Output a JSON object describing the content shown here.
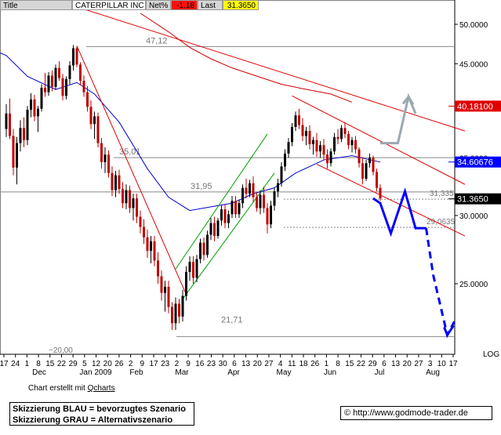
{
  "header": {
    "title_label": "Title",
    "company": "CATERPILLAR INC",
    "net_label": "Net%",
    "net_value": "-1.18",
    "last_label": "Last",
    "last_value": "31.3650"
  },
  "colors": {
    "price_up": "#000000",
    "price_down": "#c00000",
    "ma_short": "#0000cc",
    "ma_long": "#cc0000",
    "channel_red": "#e00000",
    "channel_green": "#00a000",
    "scenario_blue": "#0000ff",
    "scenario_grey": "#9aa9b0",
    "last_label_bg": "#000000",
    "tag_red": "#e00000",
    "tag_blue": "#0000ff"
  },
  "chart_data": {
    "type": "candlestick",
    "ylim": [
      20,
      53
    ],
    "y_scale": "log",
    "yticks": [
      "50.0000",
      "45.0000",
      "40.0000",
      "35.0000",
      "30.0000",
      "25.0000"
    ],
    "ytick_values": [
      50,
      45,
      40,
      35,
      30,
      25
    ],
    "y_axis_note": "LOG",
    "x_day_labels": [
      "17",
      "24",
      "1",
      "8",
      "15",
      "22",
      "29",
      "5",
      "12",
      "20",
      "26",
      "2",
      "9",
      "17",
      "23",
      "2",
      "9",
      "16",
      "23",
      "30",
      "6",
      "13",
      "20",
      "27",
      "4",
      "11",
      "18",
      "26",
      "1",
      "8",
      "15",
      "22",
      "29",
      "6",
      "13",
      "20",
      "27",
      "3",
      "10",
      "17"
    ],
    "x_month_labels": [
      "Dec",
      "Jan 2009",
      "Feb",
      "Mar",
      "Apr",
      "May",
      "Jun",
      "Jul",
      "Aug"
    ],
    "price_tags": [
      {
        "label": "40.18100",
        "value": 40.181,
        "style": "red"
      },
      {
        "label": "34.60676",
        "value": 34.60676,
        "style": "blue"
      },
      {
        "label": "31.3650",
        "value": 31.365,
        "style": "black"
      }
    ],
    "levels": [
      {
        "label": "47,12",
        "value": 47.12
      },
      {
        "label": "35,01",
        "value": 35.01
      },
      {
        "label": "31,95",
        "value": 31.95
      },
      {
        "label": "31,335",
        "value": 31.335
      },
      {
        "label": "29,0635",
        "value": 29.0635
      },
      {
        "label": "21,71",
        "value": 21.71
      },
      {
        "label": "~20,00",
        "value": 20.0
      }
    ],
    "candles": [
      [
        37.8,
        40.4,
        37.0,
        39.4
      ],
      [
        39.4,
        41.0,
        36.8,
        37.1
      ],
      [
        37.1,
        37.8,
        33.4,
        34.1
      ],
      [
        34.1,
        37.0,
        32.6,
        36.4
      ],
      [
        36.4,
        38.7,
        35.6,
        37.9
      ],
      [
        37.9,
        39.0,
        36.0,
        36.7
      ],
      [
        36.7,
        40.2,
        36.2,
        39.8
      ],
      [
        39.8,
        41.6,
        39.0,
        40.9
      ],
      [
        40.9,
        41.4,
        38.6,
        39.1
      ],
      [
        39.1,
        40.2,
        37.5,
        39.9
      ],
      [
        39.9,
        42.6,
        39.6,
        42.2
      ],
      [
        42.2,
        43.9,
        41.2,
        41.7
      ],
      [
        41.7,
        44.0,
        41.3,
        43.6
      ],
      [
        43.6,
        44.2,
        41.8,
        42.3
      ],
      [
        42.3,
        44.9,
        42.0,
        44.5
      ],
      [
        44.5,
        45.3,
        43.0,
        43.3
      ],
      [
        43.3,
        43.8,
        40.8,
        41.3
      ],
      [
        41.3,
        43.5,
        40.9,
        43.2
      ],
      [
        43.2,
        45.3,
        42.6,
        44.8
      ],
      [
        44.8,
        47.3,
        44.2,
        46.9
      ],
      [
        46.9,
        47.1,
        44.6,
        44.9
      ],
      [
        44.9,
        45.2,
        42.5,
        43.0
      ],
      [
        43.0,
        43.6,
        41.2,
        41.7
      ],
      [
        41.7,
        42.4,
        39.6,
        40.1
      ],
      [
        40.1,
        40.8,
        37.8,
        38.3
      ],
      [
        38.3,
        39.6,
        36.8,
        39.1
      ],
      [
        39.1,
        39.5,
        36.0,
        36.4
      ],
      [
        36.4,
        36.9,
        34.0,
        34.6
      ],
      [
        34.6,
        36.0,
        33.6,
        35.3
      ],
      [
        35.3,
        35.7,
        33.2,
        33.6
      ],
      [
        33.6,
        34.2,
        31.6,
        32.1
      ],
      [
        32.1,
        33.8,
        31.5,
        33.4
      ],
      [
        33.4,
        33.9,
        31.8,
        32.2
      ],
      [
        32.2,
        32.8,
        30.6,
        31.0
      ],
      [
        31.0,
        32.6,
        30.5,
        32.1
      ],
      [
        32.1,
        32.5,
        30.2,
        30.6
      ],
      [
        30.6,
        31.8,
        29.6,
        31.4
      ],
      [
        31.4,
        31.8,
        29.4,
        29.9
      ],
      [
        29.9,
        30.4,
        28.6,
        29.1
      ],
      [
        29.1,
        29.7,
        27.8,
        28.3
      ],
      [
        28.3,
        28.9,
        26.8,
        27.3
      ],
      [
        27.3,
        28.4,
        26.4,
        28.0
      ],
      [
        28.0,
        28.4,
        26.2,
        26.6
      ],
      [
        26.6,
        27.2,
        25.0,
        25.5
      ],
      [
        25.5,
        25.9,
        23.9,
        24.4
      ],
      [
        24.4,
        25.2,
        23.2,
        24.8
      ],
      [
        24.8,
        25.2,
        23.1,
        23.5
      ],
      [
        23.5,
        23.8,
        22.1,
        22.5
      ],
      [
        22.5,
        24.1,
        22.1,
        23.7
      ],
      [
        23.7,
        24.0,
        22.5,
        22.9
      ],
      [
        22.9,
        24.6,
        22.6,
        24.2
      ],
      [
        24.2,
        26.2,
        23.9,
        25.8
      ],
      [
        25.8,
        26.9,
        25.2,
        26.5
      ],
      [
        26.5,
        26.9,
        25.0,
        25.4
      ],
      [
        25.4,
        27.0,
        25.1,
        26.7
      ],
      [
        26.7,
        28.2,
        26.4,
        27.9
      ],
      [
        27.9,
        28.3,
        26.6,
        27.0
      ],
      [
        27.0,
        28.8,
        26.8,
        28.5
      ],
      [
        28.5,
        29.8,
        28.1,
        29.4
      ],
      [
        29.4,
        29.9,
        28.0,
        28.4
      ],
      [
        28.4,
        29.8,
        28.2,
        29.6
      ],
      [
        29.6,
        30.8,
        29.2,
        30.5
      ],
      [
        30.5,
        30.9,
        29.0,
        29.4
      ],
      [
        29.4,
        30.4,
        29.0,
        30.1
      ],
      [
        30.1,
        31.6,
        29.8,
        31.2
      ],
      [
        31.2,
        31.6,
        29.8,
        30.1
      ],
      [
        30.1,
        31.3,
        29.8,
        31.0
      ],
      [
        31.0,
        32.6,
        30.6,
        32.3
      ],
      [
        32.3,
        33.1,
        31.4,
        31.8
      ],
      [
        31.8,
        33.0,
        31.5,
        32.7
      ],
      [
        32.7,
        33.3,
        31.1,
        31.5
      ],
      [
        31.5,
        31.9,
        30.3,
        30.6
      ],
      [
        30.6,
        32.1,
        30.1,
        31.7
      ],
      [
        31.7,
        32.4,
        30.2,
        30.6
      ],
      [
        30.6,
        31.0,
        28.6,
        29.3
      ],
      [
        29.3,
        31.2,
        29.0,
        30.8
      ],
      [
        30.8,
        32.3,
        30.4,
        32.0
      ],
      [
        32.0,
        33.1,
        31.5,
        32.7
      ],
      [
        32.7,
        34.6,
        32.4,
        34.2
      ],
      [
        34.2,
        35.8,
        33.8,
        35.4
      ],
      [
        35.4,
        36.9,
        35.0,
        36.5
      ],
      [
        36.5,
        38.4,
        36.1,
        38.0
      ],
      [
        38.0,
        39.6,
        37.6,
        39.2
      ],
      [
        39.2,
        39.9,
        37.8,
        38.2
      ],
      [
        38.2,
        38.9,
        36.6,
        37.1
      ],
      [
        37.1,
        38.0,
        36.2,
        37.6
      ],
      [
        37.6,
        38.2,
        35.8,
        36.3
      ],
      [
        36.3,
        37.0,
        35.3,
        36.7
      ],
      [
        36.7,
        37.4,
        35.1,
        35.6
      ],
      [
        35.6,
        36.6,
        35.0,
        36.2
      ],
      [
        36.2,
        36.8,
        34.8,
        35.3
      ],
      [
        35.3,
        35.8,
        34.0,
        34.5
      ],
      [
        34.5,
        35.9,
        34.2,
        35.6
      ],
      [
        35.6,
        37.4,
        35.3,
        37.0
      ],
      [
        37.0,
        37.8,
        36.3,
        36.8
      ],
      [
        36.8,
        38.2,
        36.5,
        37.9
      ],
      [
        37.9,
        38.5,
        36.9,
        37.3
      ],
      [
        37.3,
        37.6,
        35.8,
        36.2
      ],
      [
        36.2,
        37.0,
        35.5,
        36.7
      ],
      [
        36.7,
        37.1,
        35.4,
        35.8
      ],
      [
        35.8,
        36.0,
        34.1,
        34.5
      ],
      [
        34.5,
        35.0,
        32.6,
        33.1
      ],
      [
        33.1,
        34.8,
        32.9,
        34.5
      ],
      [
        34.5,
        35.4,
        34.1,
        35.0
      ],
      [
        35.0,
        35.2,
        33.4,
        33.7
      ],
      [
        33.7,
        34.0,
        32.0,
        32.3
      ],
      [
        32.3,
        32.6,
        31.2,
        31.4
      ]
    ],
    "moving_averages": [
      {
        "period": "short",
        "color": "ma_short",
        "points": [
          [
            -16,
            49.0
          ],
          [
            0,
            46.0
          ],
          [
            6,
            43.5
          ],
          [
            14,
            42.0
          ],
          [
            20,
            42.8
          ],
          [
            25,
            41.5
          ],
          [
            32,
            38.5
          ],
          [
            40,
            34.0
          ],
          [
            46,
            31.5
          ],
          [
            52,
            30.4
          ],
          [
            58,
            30.7
          ],
          [
            64,
            31.0
          ],
          [
            70,
            31.8
          ],
          [
            76,
            32.3
          ],
          [
            82,
            33.6
          ],
          [
            90,
            34.8
          ],
          [
            98,
            35.2
          ],
          [
            106,
            34.6
          ]
        ]
      },
      {
        "period": "long",
        "color": "ma_long",
        "points": [
          [
            38,
            51.5
          ],
          [
            46,
            49.0
          ],
          [
            52,
            47.0
          ],
          [
            58,
            45.6
          ],
          [
            64,
            44.5
          ],
          [
            72,
            43.4
          ],
          [
            78,
            42.6
          ],
          [
            84,
            42.1
          ],
          [
            92,
            41.5
          ],
          [
            98,
            40.6
          ]
        ]
      }
    ],
    "trend_channels": [
      {
        "color": "channel_red",
        "points": [
          [
            20,
            47.2
          ],
          [
            51,
            24.3
          ]
        ]
      },
      {
        "color": "channel_red",
        "points": [
          [
            -8,
            57.0
          ],
          [
            130,
            37.6
          ]
        ]
      },
      {
        "color": "channel_red",
        "points": [
          [
            81,
            41.3
          ],
          [
            130,
            32.6
          ]
        ]
      },
      {
        "color": "channel_red",
        "points": [
          [
            88,
            34.4
          ],
          [
            130,
            28.4
          ]
        ]
      },
      {
        "color": "channel_green",
        "points": [
          [
            48,
            26.0
          ],
          [
            74,
            37.3
          ]
        ]
      },
      {
        "color": "channel_green",
        "points": [
          [
            50,
            24.0
          ],
          [
            76,
            33.6
          ]
        ]
      }
    ],
    "scenarios": [
      {
        "name": "",
        "color": "scenario_blue",
        "dashed": false,
        "points": [
          [
            104,
            31.4
          ],
          [
            106,
            31.0
          ],
          [
            109,
            28.6
          ],
          [
            113,
            32.0
          ],
          [
            116,
            29.0
          ],
          [
            119,
            29.0
          ]
        ]
      },
      {
        "name": "",
        "color": "scenario_blue",
        "dashed": true,
        "points": [
          [
            119,
            29.0
          ],
          [
            121,
            25.6
          ],
          [
            125,
            21.8
          ],
          [
            127,
            22.6
          ]
        ]
      },
      {
        "name": "",
        "color": "scenario_grey",
        "dashed": false,
        "points": [
          [
            106,
            36.4
          ],
          [
            111,
            36.4
          ],
          [
            114,
            41.2
          ],
          [
            116,
            39.4
          ]
        ]
      }
    ]
  },
  "footer": {
    "credit_prefix": "Chart erstellt mit",
    "credit_link": "Qcharts",
    "legend_line1": "Skizzierung BLAU = bevorzugtes Szenario",
    "legend_line2": "Skizzierung GRAU = Alternativszenario",
    "copyright": "© http://www.godmode-trader.de"
  }
}
